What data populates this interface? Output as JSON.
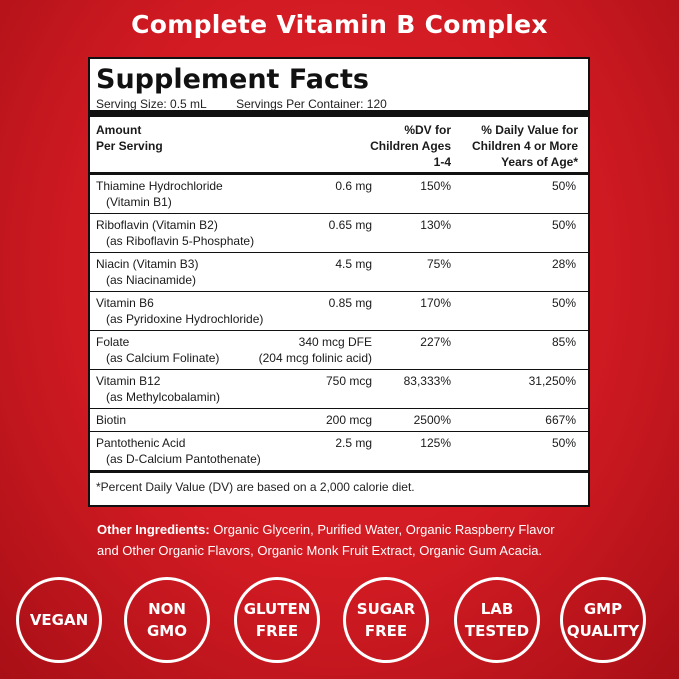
{
  "headline": "Complete Vitamin B Complex",
  "panel": {
    "title": "Supplement Facts",
    "serving_size": "Serving Size: 0.5 mL",
    "servings_per_container": "Servings Per Container: 120",
    "headers": {
      "amount_line1": "Amount",
      "amount_line2": "Per Serving",
      "dv_children_line1": "%DV for",
      "dv_children_line2": "Children Ages",
      "dv_children_line3": "1-4",
      "dv_older_line1": "% Daily Value for",
      "dv_older_line2": "Children 4 or More",
      "dv_older_line3": "Years of Age*"
    },
    "rows": [
      {
        "name": "Thiamine Hydrochloride",
        "sub": "(Vitamin B1)",
        "amount": "0.6 mg",
        "amount2": "",
        "dv_1_4": "150%",
        "dv_4plus": "50%"
      },
      {
        "name": "Riboflavin (Vitamin B2)",
        "sub": "(as Riboflavin 5-Phosphate)",
        "amount": "0.65 mg",
        "amount2": "",
        "dv_1_4": "130%",
        "dv_4plus": "50%"
      },
      {
        "name": "Niacin (Vitamin B3)",
        "sub": "(as Niacinamide)",
        "amount": "4.5 mg",
        "amount2": "",
        "dv_1_4": "75%",
        "dv_4plus": "28%"
      },
      {
        "name": "Vitamin B6",
        "sub": "(as Pyridoxine Hydrochloride)",
        "amount": "0.85 mg",
        "amount2": "",
        "dv_1_4": "170%",
        "dv_4plus": "50%"
      },
      {
        "name": "Folate",
        "sub": "(as Calcium Folinate)",
        "amount": "340 mcg DFE",
        "amount2": "(204 mcg folinic acid)",
        "dv_1_4": "227%",
        "dv_4plus": "85%"
      },
      {
        "name": "Vitamin B12",
        "sub": "(as Methylcobalamin)",
        "amount": "750 mcg",
        "amount2": "",
        "dv_1_4": "83,333%",
        "dv_4plus": "31,250%"
      },
      {
        "name": "Biotin",
        "sub": "",
        "amount": "200 mcg",
        "amount2": "",
        "dv_1_4": "2500%",
        "dv_4plus": "667%"
      },
      {
        "name": "Pantothenic Acid",
        "sub": "(as D-Calcium Pantothenate)",
        "amount": "2.5 mg",
        "amount2": "",
        "dv_1_4": "125%",
        "dv_4plus": "50%"
      }
    ],
    "footnote": "*Percent Daily Value (DV) are based on a 2,000 calorie diet."
  },
  "ingredients": {
    "label": "Other Ingredients:",
    "text": " Organic Glycerin, Purified Water, Organic Raspberry Flavor and Other Organic Flavors, Organic Monk Fruit Extract, Organic Gum Acacia."
  },
  "badges": [
    {
      "line1": "VEGAN",
      "line2": ""
    },
    {
      "line1": "NON",
      "line2": "GMO"
    },
    {
      "line1": "GLUTEN",
      "line2": "FREE"
    },
    {
      "line1": "SUGAR",
      "line2": "FREE"
    },
    {
      "line1": "LAB",
      "line2": "TESTED"
    },
    {
      "line1": "GMP",
      "line2": "QUALITY"
    }
  ],
  "colors": {
    "background": "#d01a22",
    "panel": "#ffffff",
    "text_on_red": "#ffffff"
  }
}
